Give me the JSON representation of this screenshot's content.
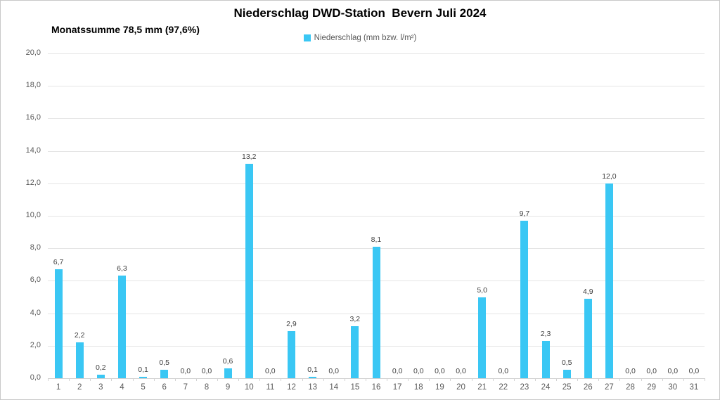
{
  "title": "Niederschlag DWD-Station  Bevern Juli 2024",
  "subtitle": "Monatssumme 78,5 mm (97,6%)",
  "legend": {
    "label": "Niederschlag (mm bzw. l/m²)",
    "swatch_color": "#3ac7f4"
  },
  "colors": {
    "bar": "#3ac7f4",
    "gridline": "#e5e5e5",
    "axis_line": "#d2d2d2",
    "axis_text": "#595959",
    "value_label_text": "#404040",
    "title_text": "#000000"
  },
  "chart_data": {
    "type": "bar",
    "title": "Niederschlag DWD-Station  Bevern Juli 2024",
    "subtitle": "Monatssumme 78,5 mm (97,6%)",
    "legend_entries": [
      "Niederschlag (mm bzw. l/m²)"
    ],
    "legend_position": "top-center",
    "grid": true,
    "xlabel": "",
    "ylabel": "",
    "ylim": [
      0,
      20
    ],
    "ytick_step": 2,
    "ytick_labels": [
      "0,0",
      "2,0",
      "4,0",
      "6,0",
      "8,0",
      "10,0",
      "12,0",
      "14,0",
      "16,0",
      "18,0",
      "20,0"
    ],
    "categories": [
      "1",
      "2",
      "3",
      "4",
      "5",
      "6",
      "7",
      "8",
      "9",
      "10",
      "11",
      "12",
      "13",
      "14",
      "15",
      "16",
      "17",
      "18",
      "19",
      "20",
      "21",
      "22",
      "23",
      "24",
      "25",
      "26",
      "27",
      "28",
      "29",
      "30",
      "31"
    ],
    "values": [
      6.7,
      2.2,
      0.2,
      6.3,
      0.1,
      0.5,
      0.0,
      0.0,
      0.6,
      13.2,
      0.0,
      2.9,
      0.1,
      0.0,
      3.2,
      8.1,
      0.0,
      0.0,
      0.0,
      0.0,
      5.0,
      0.0,
      9.7,
      2.3,
      0.5,
      4.9,
      12.0,
      0.0,
      0.0,
      0.0,
      0.0
    ],
    "value_labels": [
      "6,7",
      "2,2",
      "0,2",
      "6,3",
      "0,1",
      "0,5",
      "0,0",
      "0,0",
      "0,6",
      "13,2",
      "0,0",
      "2,9",
      "0,1",
      "0,0",
      "3,2",
      "8,1",
      "0,0",
      "0,0",
      "0,0",
      "0,0",
      "5,0",
      "0,0",
      "9,7",
      "2,3",
      "0,5",
      "4,9",
      "12,0",
      "0,0",
      "0,0",
      "0,0",
      "0,0"
    ]
  }
}
